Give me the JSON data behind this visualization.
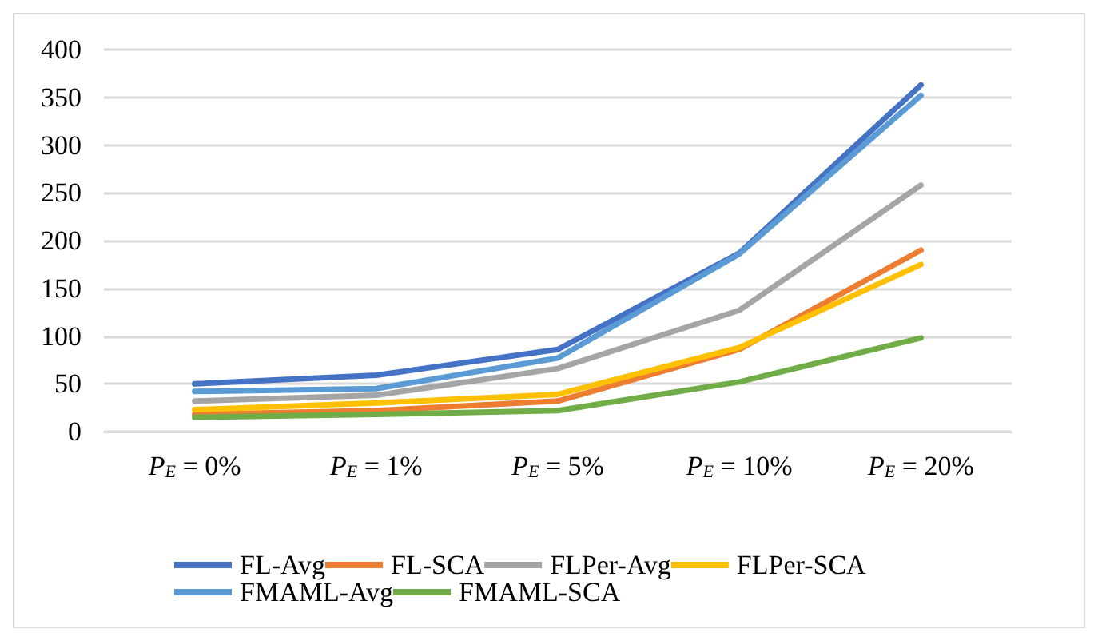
{
  "chart_data": {
    "type": "line",
    "categories": [
      "P$_{E}$ = 0%",
      "P$_{E}$ = 1%",
      "P$_{E}$ = 5%",
      "P$_{E}$ = 10%",
      "P$_{E}$ = 20%"
    ],
    "series": [
      {
        "name": "FL-Avg",
        "color": "#4472c4",
        "values": [
          50,
          59,
          86,
          187,
          363
        ]
      },
      {
        "name": "FL-SCA",
        "color": "#ed7d31",
        "values": [
          18,
          22,
          32,
          86,
          190
        ]
      },
      {
        "name": "FLPer-Avg",
        "color": "#a5a5a5",
        "values": [
          32,
          38,
          66,
          127,
          258
        ]
      },
      {
        "name": "FLPer-SCA",
        "color": "#ffc000",
        "values": [
          23,
          30,
          39,
          88,
          175
        ]
      },
      {
        "name": "FMAML-Avg",
        "color": "#5b9bd5",
        "values": [
          42,
          45,
          77,
          186,
          352
        ]
      },
      {
        "name": "FMAML-SCA",
        "color": "#70ad47",
        "values": [
          15,
          18,
          22,
          52,
          98
        ]
      }
    ],
    "ylim": [
      0,
      400
    ],
    "yticks": [
      0,
      50,
      100,
      150,
      200,
      250,
      300,
      350,
      400
    ],
    "grid": "y",
    "legend": "bottom",
    "marker": "none",
    "line_style": "solid"
  }
}
